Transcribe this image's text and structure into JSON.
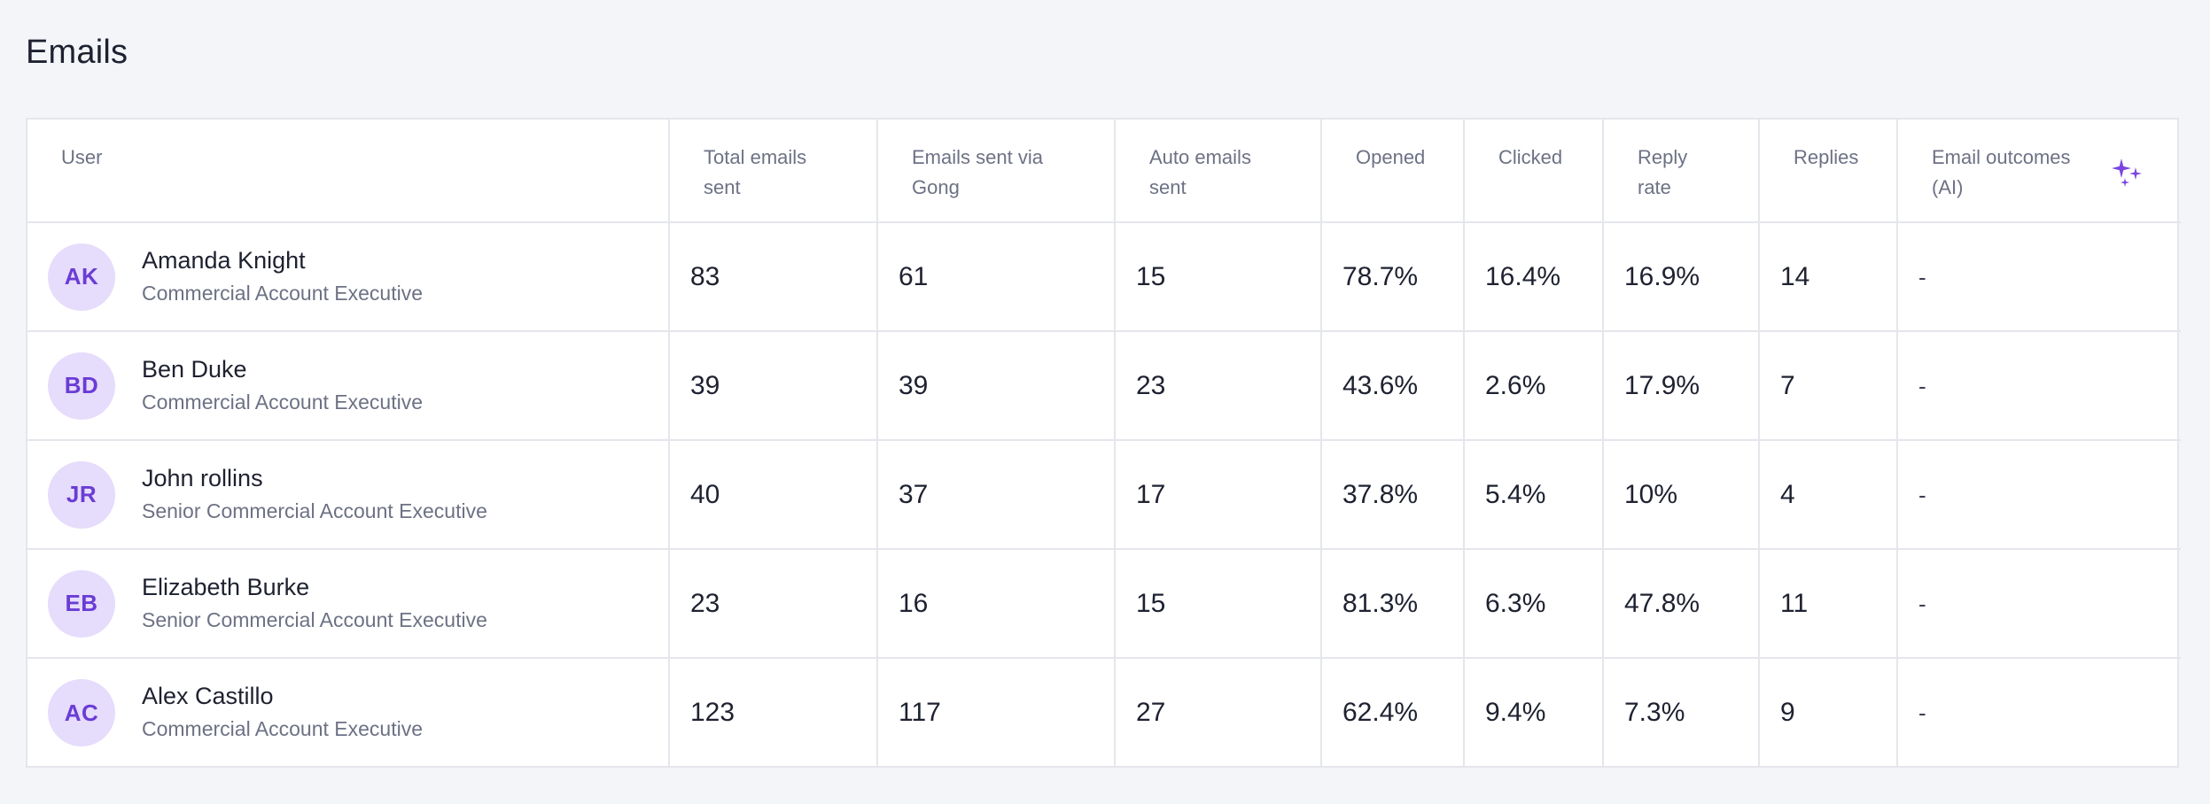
{
  "page": {
    "title": "Emails"
  },
  "table": {
    "headers": {
      "user": "User",
      "total_sent": [
        "Total emails",
        "sent"
      ],
      "via_gong": [
        "Emails sent via",
        "Gong"
      ],
      "auto_sent": [
        "Auto emails",
        "sent"
      ],
      "opened": "Opened",
      "clicked": "Clicked",
      "reply_rate": [
        "Reply",
        "rate"
      ],
      "replies": "Replies",
      "outcomes": [
        "Email outcomes",
        "(AI)"
      ]
    },
    "outcomes_icon": "sparkle-icon",
    "accent_color": "#7a45e0",
    "avatar_bg": "#e6dcfb",
    "rows": [
      {
        "initials": "AK",
        "name": "Amanda Knight",
        "role": "Commercial Account Executive",
        "total_sent": "83",
        "via_gong": "61",
        "auto_sent": "15",
        "opened": "78.7%",
        "clicked": "16.4%",
        "reply_rate": "16.9%",
        "replies": "14",
        "outcomes": "-"
      },
      {
        "initials": "BD",
        "name": "Ben Duke",
        "role": "Commercial Account Executive",
        "total_sent": "39",
        "via_gong": "39",
        "auto_sent": "23",
        "opened": "43.6%",
        "clicked": "2.6%",
        "reply_rate": "17.9%",
        "replies": "7",
        "outcomes": "-"
      },
      {
        "initials": "JR",
        "name": "John rollins",
        "role": "Senior Commercial Account Executive",
        "total_sent": "40",
        "via_gong": "37",
        "auto_sent": "17",
        "opened": "37.8%",
        "clicked": "5.4%",
        "reply_rate": "10%",
        "replies": "4",
        "outcomes": "-"
      },
      {
        "initials": "EB",
        "name": "Elizabeth Burke",
        "role": "Senior Commercial Account Executive",
        "total_sent": "23",
        "via_gong": "16",
        "auto_sent": "15",
        "opened": "81.3%",
        "clicked": "6.3%",
        "reply_rate": "47.8%",
        "replies": "11",
        "outcomes": "-"
      },
      {
        "initials": "AC",
        "name": "Alex Castillo",
        "role": "Commercial Account Executive",
        "total_sent": "123",
        "via_gong": "117",
        "auto_sent": "27",
        "opened": "62.4%",
        "clicked": "9.4%",
        "reply_rate": "7.3%",
        "replies": "9",
        "outcomes": "-"
      }
    ]
  }
}
